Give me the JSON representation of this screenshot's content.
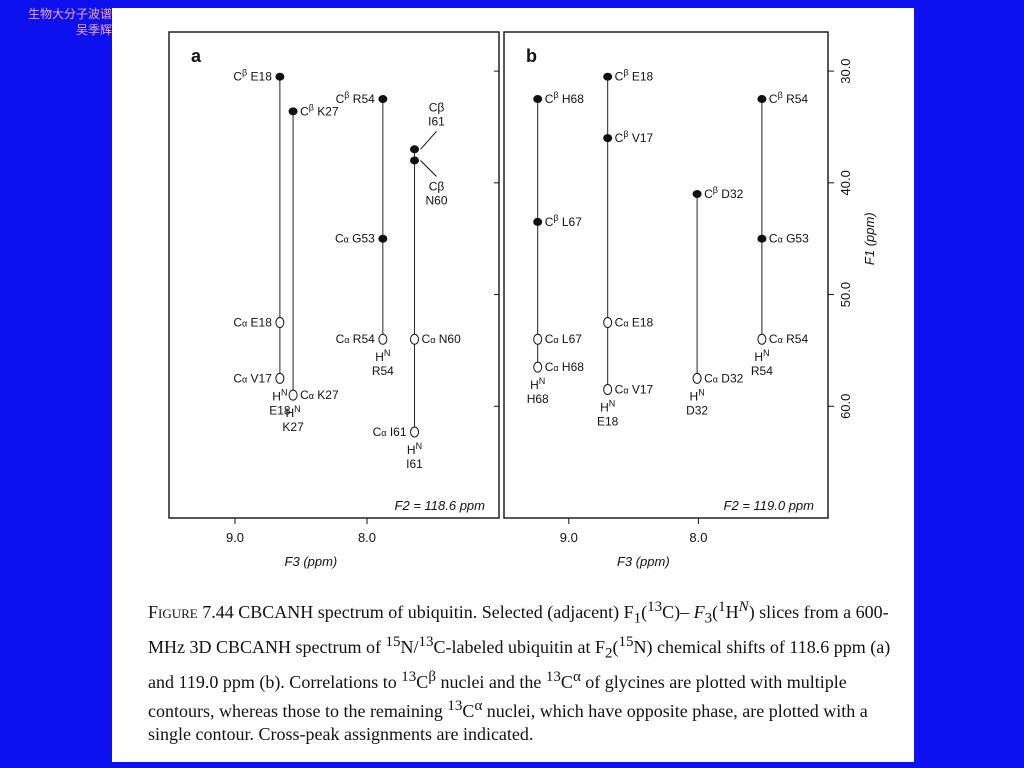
{
  "watermark": {
    "line1": "生物大分子波谱",
    "line2": "吴季辉"
  },
  "figure": {
    "panel_a": {
      "letter": "a",
      "f2_label": "F2 = 118.6 ppm",
      "x_ticks": [
        "9.0",
        "8.0"
      ],
      "x_label": "F3 (ppm)"
    },
    "panel_b": {
      "letter": "b",
      "f2_label": "F2 = 119.0 ppm",
      "x_ticks": [
        "9.0",
        "8.0"
      ],
      "x_label": "F3 (ppm)"
    },
    "y_ticks": [
      "30.0",
      "40.0",
      "50.0",
      "60.0"
    ],
    "y_label": "F1 (ppm)"
  },
  "chart_data": [
    {
      "type": "scatter",
      "panel": "a",
      "title": "F2 = 118.6 ppm",
      "xlabel": "F3 (ppm)",
      "ylabel": "F1 (ppm)",
      "x_direction": "reversed",
      "xlim": [
        9.5,
        7.0
      ],
      "ylim": [
        70.0,
        26.5
      ],
      "strips": [
        {
          "name": "E18",
          "x": 8.66,
          "hn_label": "E18",
          "peaks": [
            {
              "label": "E18",
              "ppm": 30.5,
              "type": "CB"
            },
            {
              "label": "E18",
              "ppm": 52.5,
              "type": "CA"
            },
            {
              "label": "V17",
              "ppm": 57.5,
              "type": "CA"
            }
          ]
        },
        {
          "name": "K27",
          "x": 8.56,
          "hn_label": "K27",
          "peaks": [
            {
              "label": "K27",
              "ppm": 33.6,
              "type": "CB"
            },
            {
              "label": "K27",
              "ppm": 59.0,
              "type": "CA"
            }
          ]
        },
        {
          "name": "R54",
          "x": 7.88,
          "hn_label": "R54",
          "peaks": [
            {
              "label": "R54",
              "ppm": 32.5,
              "type": "CB"
            },
            {
              "label": "G53",
              "ppm": 45.0,
              "type": "CA"
            },
            {
              "label": "R54",
              "ppm": 54.0,
              "type": "CA"
            }
          ]
        },
        {
          "name": "I61",
          "x": 7.64,
          "hn_label": "I61",
          "peaks": [
            {
              "label": "I61",
              "ppm": 37.0,
              "type": "CB"
            },
            {
              "label": "N60",
              "ppm": 38.0,
              "type": "CB"
            },
            {
              "label": "N60",
              "ppm": 54.0,
              "type": "CA"
            },
            {
              "label": "I61",
              "ppm": 62.3,
              "type": "CA"
            }
          ]
        }
      ]
    },
    {
      "type": "scatter",
      "panel": "b",
      "title": "F2 = 119.0 ppm",
      "xlabel": "F3 (ppm)",
      "ylabel": "F1 (ppm)",
      "x_direction": "reversed",
      "xlim": [
        9.5,
        7.0
      ],
      "ylim": [
        70.0,
        26.5
      ],
      "strips": [
        {
          "name": "H68",
          "x": 9.24,
          "hn_label": "H68",
          "peaks": [
            {
              "label": "H68",
              "ppm": 32.5,
              "type": "CB"
            },
            {
              "label": "L67",
              "ppm": 43.5,
              "type": "CB"
            },
            {
              "label": "L67",
              "ppm": 54.0,
              "type": "CA"
            },
            {
              "label": "H68",
              "ppm": 56.5,
              "type": "CA"
            }
          ]
        },
        {
          "name": "E18",
          "x": 8.7,
          "hn_label": "E18",
          "peaks": [
            {
              "label": "E18",
              "ppm": 30.5,
              "type": "CB"
            },
            {
              "label": "V17",
              "ppm": 36.0,
              "type": "CB"
            },
            {
              "label": "E18",
              "ppm": 52.5,
              "type": "CA"
            },
            {
              "label": "V17",
              "ppm": 58.5,
              "type": "CA"
            }
          ]
        },
        {
          "name": "D32",
          "x": 8.01,
          "hn_label": "D32",
          "peaks": [
            {
              "label": "D32",
              "ppm": 41.0,
              "type": "CB"
            },
            {
              "label": "D32",
              "ppm": 57.5,
              "type": "CA"
            }
          ]
        },
        {
          "name": "R54",
          "x": 7.51,
          "hn_label": "R54",
          "peaks": [
            {
              "label": "R54",
              "ppm": 32.5,
              "type": "CB"
            },
            {
              "label": "G53",
              "ppm": 45.0,
              "type": "CA"
            },
            {
              "label": "R54",
              "ppm": 54.0,
              "type": "CA"
            }
          ]
        }
      ]
    }
  ],
  "caption": {
    "figure_word": "Figure",
    "number": "7.44",
    "title": "CBCANH spectrum of ubiquitin.",
    "text_1": "Selected (adjacent) F",
    "text_2": "C)–",
    "text_3": "H",
    "text_4": ") slices from a 600-MHz 3D CBCANH spectrum of ",
    "text_5": "N/",
    "text_6": "C-labeled ubiquitin at F",
    "text_7": "N) chemical shifts of 118.6 ppm (a) and 119.0 ppm (b). Correlations to ",
    "text_8": "nuclei and the ",
    "text_9": " of glycines are plotted with multiple contours, whereas those to the remaining ",
    "text_10": " nuclei, which have opposite phase, are plotted with a single contour. Cross-peak assignments are indicated."
  }
}
